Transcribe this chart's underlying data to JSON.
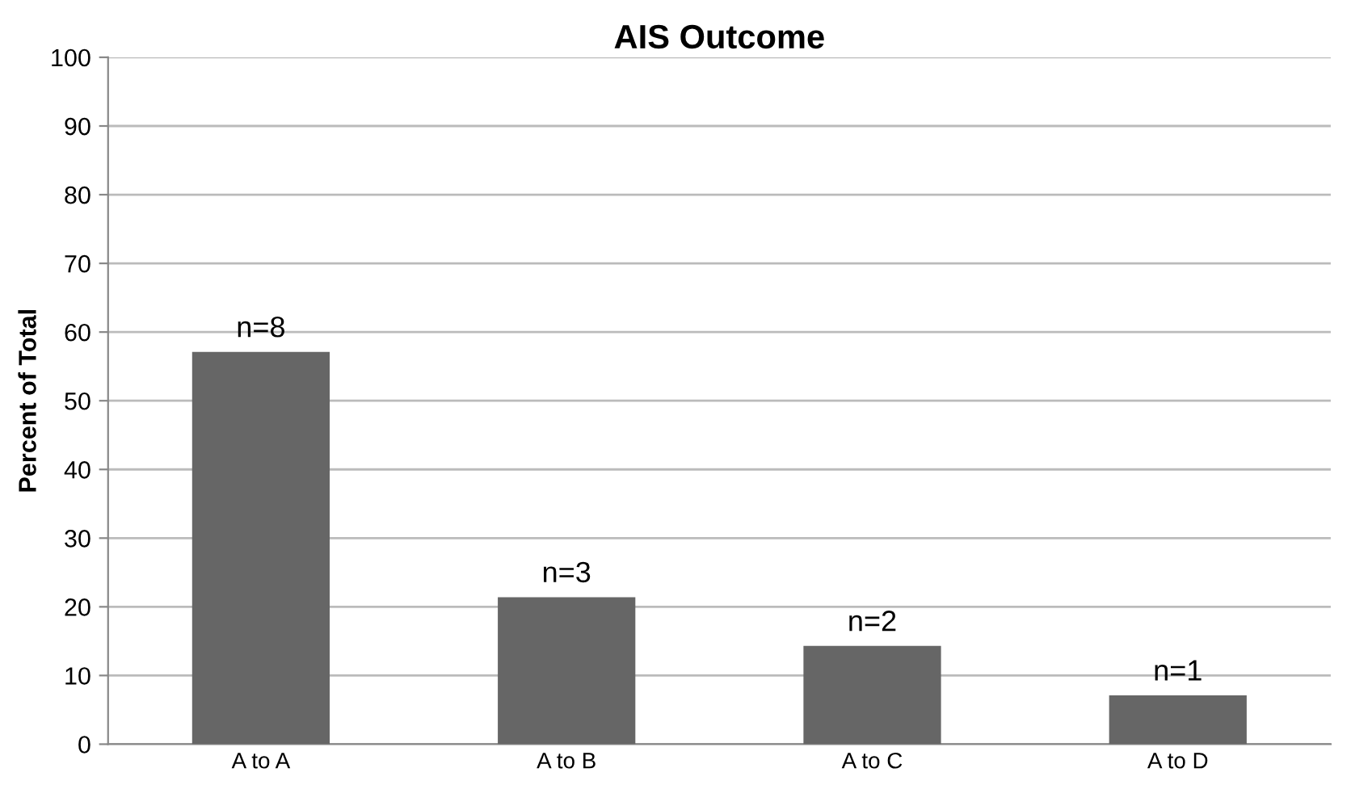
{
  "chart_data": {
    "type": "bar",
    "title": "AIS Outcome",
    "ylabel": "Percent of Total",
    "categories": [
      "A to A",
      "A to B",
      "A to C",
      "A to D"
    ],
    "values": [
      57.1,
      21.4,
      14.3,
      7.1
    ],
    "color": "#666666",
    "annotations": [
      {
        "text": "n=8",
        "x": "A to A",
        "y": 57.1
      },
      {
        "text": "n=3",
        "x": "A to B",
        "y": 21.4
      },
      {
        "text": "n=2",
        "x": "A to C",
        "y": 14.3
      },
      {
        "text": "n=1",
        "x": "A to D",
        "y": 7.1
      }
    ],
    "ylim": [
      0,
      100
    ],
    "yticks": [
      0,
      10,
      20,
      30,
      40,
      50,
      60,
      70,
      80,
      90,
      100
    ],
    "grid": "y",
    "legend": false
  }
}
